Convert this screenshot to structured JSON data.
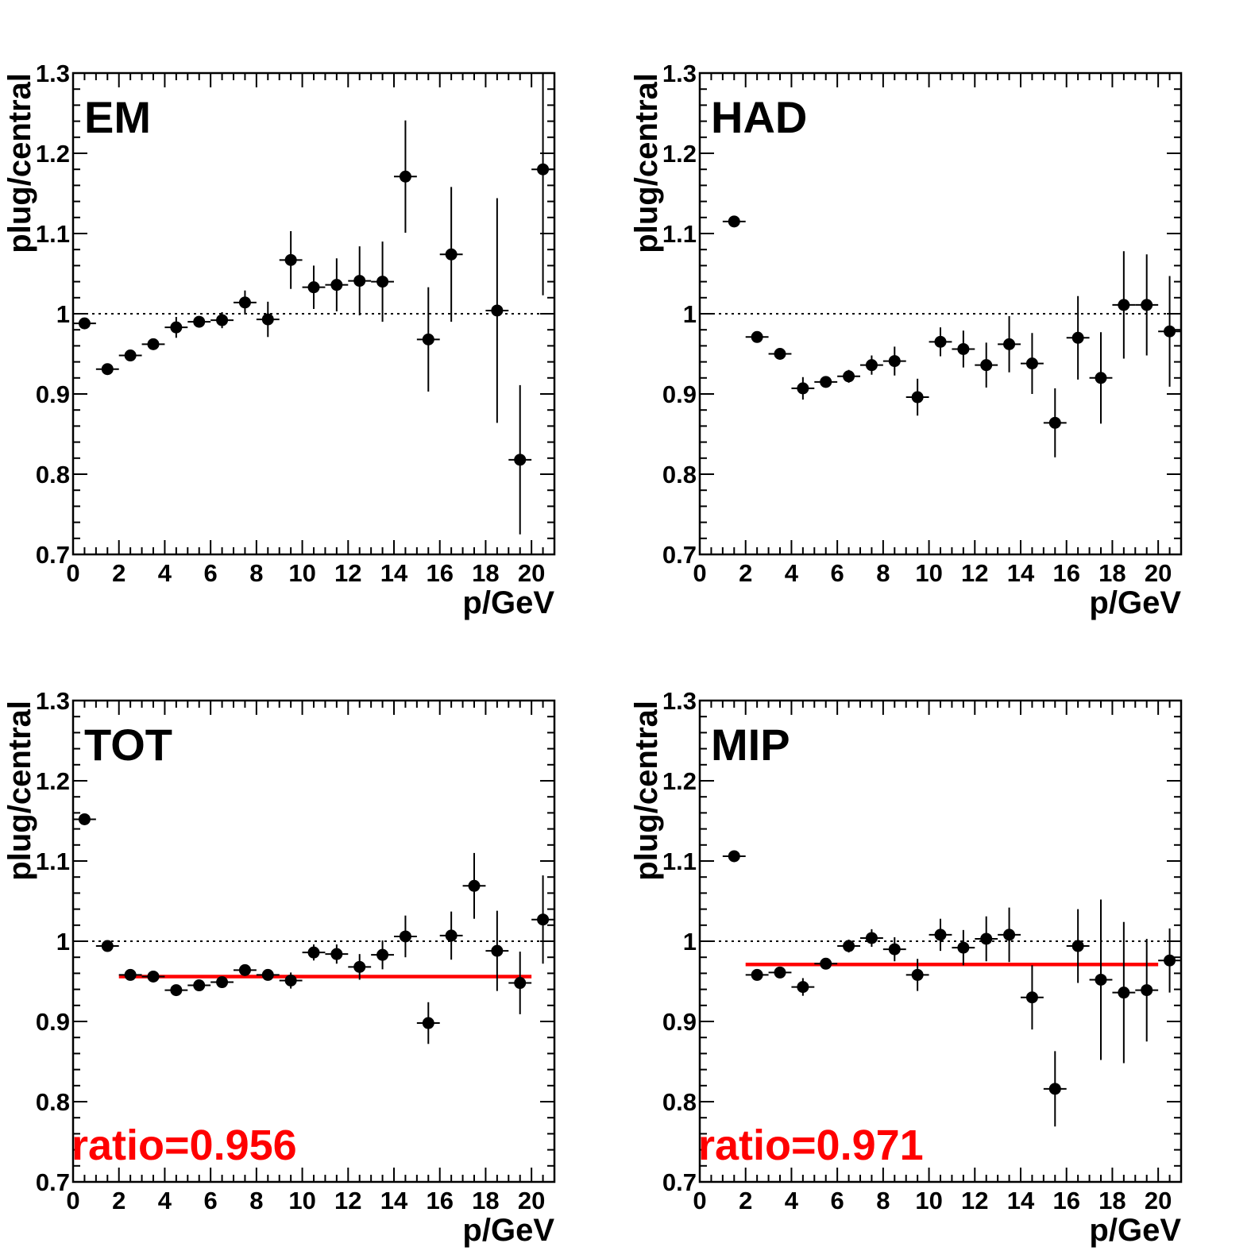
{
  "chart_data": [
    {
      "type": "scatter",
      "label": "EM",
      "xlabel": "p/GeV",
      "ylabel": "plug/central",
      "xlim": [
        0,
        21
      ],
      "ylim": [
        0.7,
        1.3
      ],
      "xticks": [
        0,
        2,
        4,
        6,
        8,
        10,
        12,
        14,
        16,
        18,
        20
      ],
      "yticks": [
        0.7,
        0.8,
        0.9,
        1,
        1.1,
        1.2,
        1.3
      ],
      "reference_line": 1,
      "points": [
        {
          "x": 0.5,
          "y": 0.988,
          "yerr": 0.003
        },
        {
          "x": 1.5,
          "y": 0.931,
          "yerr": 0.003
        },
        {
          "x": 2.5,
          "y": 0.948,
          "yerr": 0.005
        },
        {
          "x": 3.5,
          "y": 0.962,
          "yerr": 0.005
        },
        {
          "x": 4.5,
          "y": 0.983,
          "yerr": 0.013
        },
        {
          "x": 5.5,
          "y": 0.99,
          "yerr": 0.007
        },
        {
          "x": 6.5,
          "y": 0.992,
          "yerr": 0.01
        },
        {
          "x": 7.5,
          "y": 1.014,
          "yerr": 0.015
        },
        {
          "x": 8.5,
          "y": 0.993,
          "yerr": 0.022
        },
        {
          "x": 9.5,
          "y": 1.067,
          "yerr": 0.036
        },
        {
          "x": 10.5,
          "y": 1.033,
          "yerr": 0.027
        },
        {
          "x": 11.5,
          "y": 1.036,
          "yerr": 0.033
        },
        {
          "x": 12.5,
          "y": 1.041,
          "yerr": 0.043
        },
        {
          "x": 13.5,
          "y": 1.04,
          "yerr": 0.05
        },
        {
          "x": 14.5,
          "y": 1.171,
          "yerr": 0.07
        },
        {
          "x": 15.5,
          "y": 0.968,
          "yerr": 0.065
        },
        {
          "x": 16.5,
          "y": 1.074,
          "yerr": 0.084
        },
        {
          "x": 18.5,
          "y": 1.004,
          "yerr": 0.14
        },
        {
          "x": 19.5,
          "y": 0.818,
          "yerr": 0.093
        },
        {
          "x": 20.5,
          "y": 1.18,
          "yerr": 0.157
        }
      ]
    },
    {
      "type": "scatter",
      "label": "HAD",
      "xlabel": "p/GeV",
      "ylabel": "plug/central",
      "xlim": [
        0,
        21
      ],
      "ylim": [
        0.7,
        1.3
      ],
      "xticks": [
        0,
        2,
        4,
        6,
        8,
        10,
        12,
        14,
        16,
        18,
        20
      ],
      "yticks": [
        0.7,
        0.8,
        0.9,
        1,
        1.1,
        1.2,
        1.3
      ],
      "reference_line": 1,
      "points": [
        {
          "x": 1.5,
          "y": 1.115,
          "yerr": 0.003
        },
        {
          "x": 2.5,
          "y": 0.971,
          "yerr": 0.004
        },
        {
          "x": 3.5,
          "y": 0.95,
          "yerr": 0.007
        },
        {
          "x": 4.5,
          "y": 0.907,
          "yerr": 0.014
        },
        {
          "x": 5.5,
          "y": 0.915,
          "yerr": 0.006
        },
        {
          "x": 6.5,
          "y": 0.922,
          "yerr": 0.008
        },
        {
          "x": 7.5,
          "y": 0.936,
          "yerr": 0.012
        },
        {
          "x": 8.5,
          "y": 0.941,
          "yerr": 0.018
        },
        {
          "x": 9.5,
          "y": 0.896,
          "yerr": 0.023
        },
        {
          "x": 10.5,
          "y": 0.965,
          "yerr": 0.018
        },
        {
          "x": 11.5,
          "y": 0.956,
          "yerr": 0.023
        },
        {
          "x": 12.5,
          "y": 0.936,
          "yerr": 0.028
        },
        {
          "x": 13.5,
          "y": 0.962,
          "yerr": 0.035
        },
        {
          "x": 14.5,
          "y": 0.938,
          "yerr": 0.038
        },
        {
          "x": 15.5,
          "y": 0.864,
          "yerr": 0.043
        },
        {
          "x": 16.5,
          "y": 0.97,
          "yerr": 0.052
        },
        {
          "x": 17.5,
          "y": 0.92,
          "yerr": 0.057
        },
        {
          "x": 18.5,
          "y": 1.011,
          "yerr": 0.067
        },
        {
          "x": 19.5,
          "y": 1.011,
          "yerr": 0.063
        },
        {
          "x": 20.5,
          "y": 0.978,
          "yerr": 0.069
        }
      ]
    },
    {
      "type": "scatter",
      "label": "TOT",
      "xlabel": "p/GeV",
      "ylabel": "plug/central",
      "xlim": [
        0,
        21
      ],
      "ylim": [
        0.7,
        1.3
      ],
      "xticks": [
        0,
        2,
        4,
        6,
        8,
        10,
        12,
        14,
        16,
        18,
        20
      ],
      "yticks": [
        0.7,
        0.8,
        0.9,
        1,
        1.1,
        1.2,
        1.3
      ],
      "reference_line": 1,
      "fit": {
        "value": 0.956,
        "x_from": 2,
        "x_to": 20,
        "text": "ratio=0.956"
      },
      "points": [
        {
          "x": 0.5,
          "y": 1.152,
          "yerr": 0.003
        },
        {
          "x": 1.5,
          "y": 0.994,
          "yerr": 0.003
        },
        {
          "x": 2.5,
          "y": 0.958,
          "yerr": 0.004
        },
        {
          "x": 3.5,
          "y": 0.956,
          "yerr": 0.004
        },
        {
          "x": 4.5,
          "y": 0.939,
          "yerr": 0.004
        },
        {
          "x": 5.5,
          "y": 0.945,
          "yerr": 0.004
        },
        {
          "x": 6.5,
          "y": 0.949,
          "yerr": 0.005
        },
        {
          "x": 7.5,
          "y": 0.964,
          "yerr": 0.006
        },
        {
          "x": 8.5,
          "y": 0.958,
          "yerr": 0.007
        },
        {
          "x": 9.5,
          "y": 0.951,
          "yerr": 0.01
        },
        {
          "x": 10.5,
          "y": 0.986,
          "yerr": 0.01
        },
        {
          "x": 11.5,
          "y": 0.984,
          "yerr": 0.012
        },
        {
          "x": 12.5,
          "y": 0.968,
          "yerr": 0.016
        },
        {
          "x": 13.5,
          "y": 0.983,
          "yerr": 0.018
        },
        {
          "x": 14.5,
          "y": 1.006,
          "yerr": 0.026
        },
        {
          "x": 15.5,
          "y": 0.898,
          "yerr": 0.026
        },
        {
          "x": 16.5,
          "y": 1.007,
          "yerr": 0.03
        },
        {
          "x": 17.5,
          "y": 1.069,
          "yerr": 0.041
        },
        {
          "x": 18.5,
          "y": 0.988,
          "yerr": 0.05
        },
        {
          "x": 19.5,
          "y": 0.948,
          "yerr": 0.039
        },
        {
          "x": 20.5,
          "y": 1.027,
          "yerr": 0.055
        }
      ]
    },
    {
      "type": "scatter",
      "label": "MIP",
      "xlabel": "p/GeV",
      "ylabel": "plug/central",
      "xlim": [
        0,
        21
      ],
      "ylim": [
        0.7,
        1.3
      ],
      "xticks": [
        0,
        2,
        4,
        6,
        8,
        10,
        12,
        14,
        16,
        18,
        20
      ],
      "yticks": [
        0.7,
        0.8,
        0.9,
        1,
        1.1,
        1.2,
        1.3
      ],
      "reference_line": 1,
      "fit": {
        "value": 0.971,
        "x_from": 2,
        "x_to": 20,
        "text": "ratio=0.971"
      },
      "points": [
        {
          "x": 1.5,
          "y": 1.106,
          "yerr": 0.003
        },
        {
          "x": 2.5,
          "y": 0.958,
          "yerr": 0.004
        },
        {
          "x": 3.5,
          "y": 0.961,
          "yerr": 0.007
        },
        {
          "x": 4.5,
          "y": 0.943,
          "yerr": 0.011
        },
        {
          "x": 5.5,
          "y": 0.972,
          "yerr": 0.005
        },
        {
          "x": 6.5,
          "y": 0.994,
          "yerr": 0.008
        },
        {
          "x": 7.5,
          "y": 1.004,
          "yerr": 0.011
        },
        {
          "x": 8.5,
          "y": 0.99,
          "yerr": 0.015
        },
        {
          "x": 9.5,
          "y": 0.958,
          "yerr": 0.02
        },
        {
          "x": 10.5,
          "y": 1.008,
          "yerr": 0.02
        },
        {
          "x": 11.5,
          "y": 0.992,
          "yerr": 0.022
        },
        {
          "x": 12.5,
          "y": 1.003,
          "yerr": 0.028
        },
        {
          "x": 13.5,
          "y": 1.008,
          "yerr": 0.034
        },
        {
          "x": 14.5,
          "y": 0.93,
          "yerr": 0.04
        },
        {
          "x": 15.5,
          "y": 0.816,
          "yerr": 0.047
        },
        {
          "x": 16.5,
          "y": 0.994,
          "yerr": 0.046
        },
        {
          "x": 17.5,
          "y": 0.952,
          "yerr": 0.1
        },
        {
          "x": 18.5,
          "y": 0.936,
          "yerr": 0.088
        },
        {
          "x": 19.5,
          "y": 0.939,
          "yerr": 0.064
        },
        {
          "x": 20.5,
          "y": 0.976,
          "yerr": 0.04
        }
      ]
    }
  ]
}
